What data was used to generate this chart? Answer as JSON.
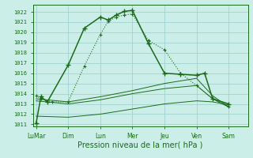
{
  "bg_color": "#cceee8",
  "grid_color": "#99cccc",
  "line_color": "#1a6b1a",
  "xlabel": "Pression niveau de la mer( hPa )",
  "ylim": [
    1010.8,
    1022.7
  ],
  "yticks": [
    1011,
    1012,
    1013,
    1014,
    1015,
    1016,
    1017,
    1018,
    1019,
    1020,
    1021,
    1022
  ],
  "xlabels": [
    "LuMar",
    "Dim",
    "Lun",
    "Mer",
    "Jeu",
    "Ven",
    "Sam"
  ],
  "x_tick_pos": [
    0,
    2,
    4,
    6,
    8,
    10,
    12
  ],
  "xlim": [
    -0.2,
    13.2
  ],
  "main_x": [
    0,
    0.3,
    0.7,
    2,
    3,
    4,
    4.5,
    5,
    5.5,
    6,
    7,
    8,
    9,
    10,
    10.5,
    11,
    12
  ],
  "main_y": [
    1011.1,
    1013.7,
    1013.2,
    1016.8,
    1020.4,
    1021.5,
    1021.2,
    1021.7,
    1022.05,
    1022.15,
    1018.9,
    1016.0,
    1015.9,
    1015.8,
    1016.0,
    1013.5,
    1013.0
  ],
  "dot_x": [
    0,
    0.3,
    1,
    2,
    3,
    4,
    4.5,
    5,
    5.5,
    6,
    7,
    8,
    9,
    10,
    11,
    12
  ],
  "dot_y": [
    1013.8,
    1013.5,
    1013.2,
    1013.2,
    1016.7,
    1019.8,
    1021.1,
    1021.5,
    1021.7,
    1021.8,
    1019.2,
    1018.3,
    1016.0,
    1014.8,
    1013.5,
    1012.7
  ],
  "flat1_x": [
    0,
    2,
    4,
    6,
    8,
    10,
    11,
    12
  ],
  "flat1_y": [
    1013.5,
    1013.2,
    1013.7,
    1014.3,
    1015.0,
    1015.5,
    1013.8,
    1012.7
  ],
  "flat2_x": [
    0,
    2,
    4,
    6,
    8,
    10,
    11,
    12
  ],
  "flat2_y": [
    1013.3,
    1013.0,
    1013.4,
    1014.0,
    1014.5,
    1014.8,
    1013.5,
    1012.7
  ],
  "flat3_x": [
    0,
    2,
    4,
    6,
    8,
    10,
    11,
    12
  ],
  "flat3_y": [
    1011.8,
    1011.7,
    1012.0,
    1012.5,
    1013.0,
    1013.3,
    1013.2,
    1012.9
  ]
}
